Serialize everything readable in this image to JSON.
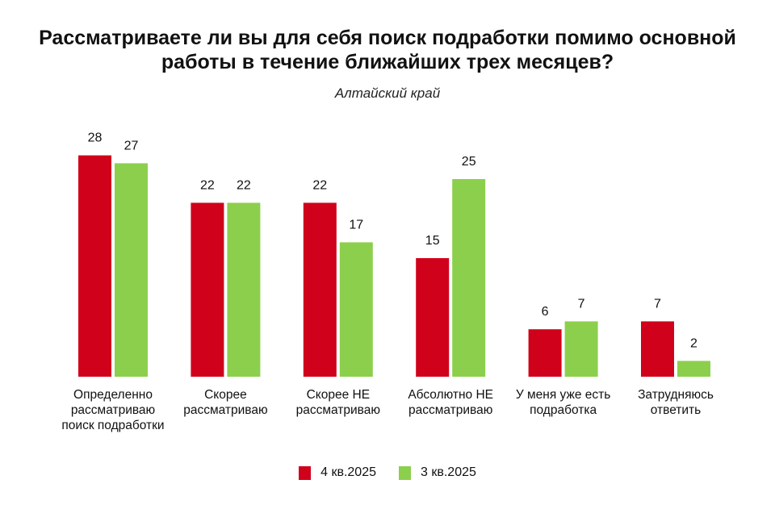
{
  "chart_data": {
    "type": "bar",
    "title": "Рассматриваете ли вы для себя поиск подработки помимо основной работы в течение ближайших трех месяцев?",
    "subtitle": "Алтайский край",
    "categories": [
      "Определенно рассматриваю поиск подработки",
      "Скорее рассматриваю",
      "Скорее НЕ рассматриваю",
      "Абсолютно НЕ рассматриваю",
      "У меня уже есть подработка",
      "Затрудняюсь ответить"
    ],
    "series": [
      {
        "name": "4 кв.2025",
        "color": "#d0021b",
        "values": [
          28,
          22,
          22,
          15,
          6,
          7
        ]
      },
      {
        "name": "3 кв.2025",
        "color": "#8ccf4d",
        "values": [
          27,
          22,
          17,
          25,
          7,
          2
        ]
      }
    ],
    "ylim": [
      0,
      30
    ],
    "grid": false,
    "data_labels": true,
    "legend": "bottom"
  }
}
